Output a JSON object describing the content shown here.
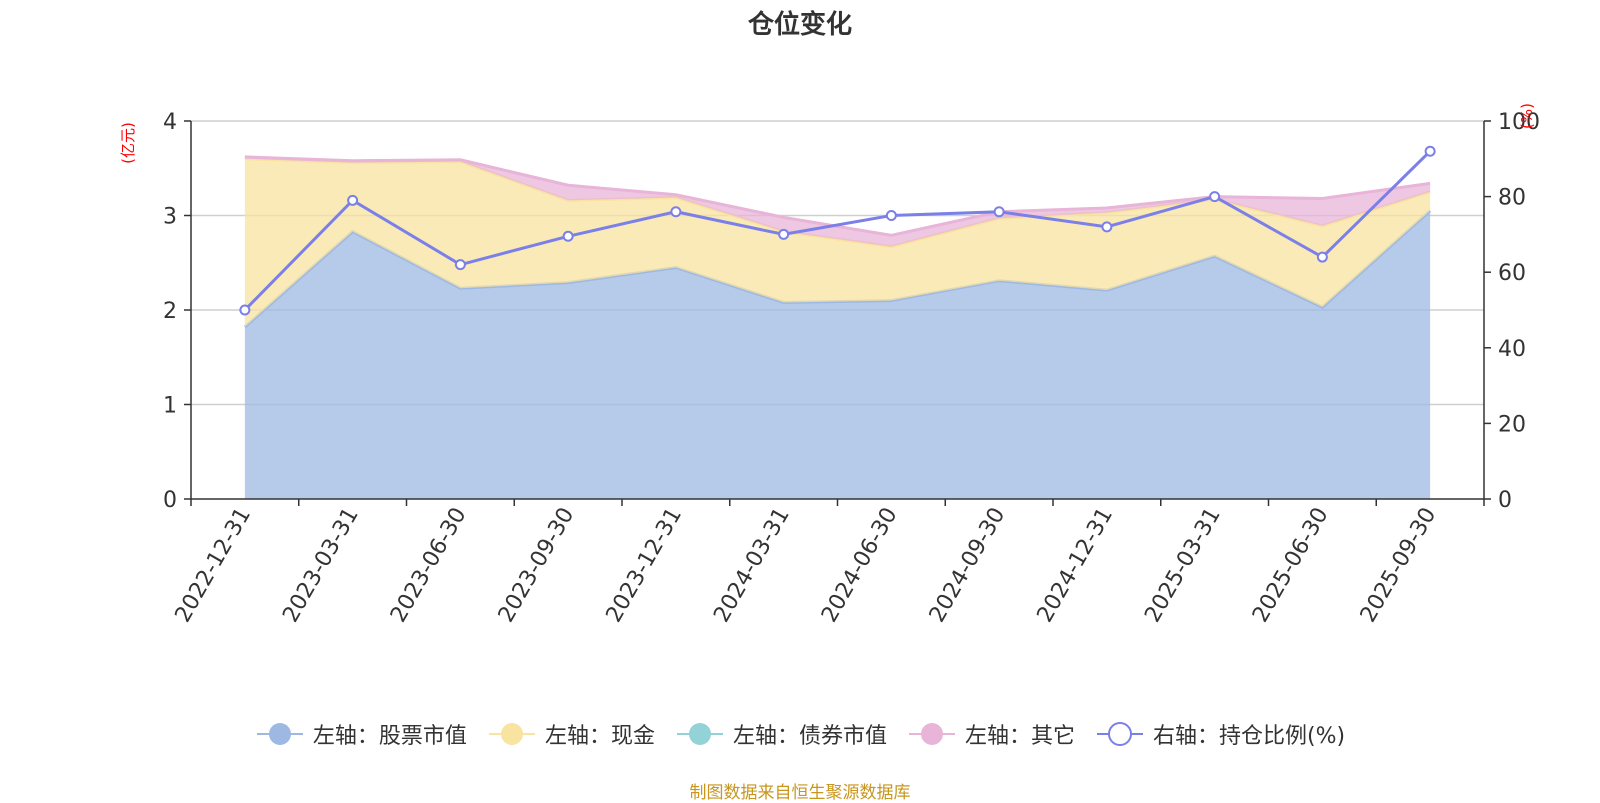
{
  "chart_data": {
    "type": "area",
    "title": "仓位变化",
    "source_note": "制图数据来自恒生聚源数据库",
    "left_axis": {
      "label": "(亿元)",
      "range": [
        0,
        4
      ],
      "ticks": [
        "0",
        "1",
        "2",
        "3",
        "4"
      ]
    },
    "right_axis": {
      "label": "(%)",
      "range": [
        0,
        100
      ],
      "ticks": [
        "0",
        "20",
        "40",
        "60",
        "80",
        "100"
      ]
    },
    "categories": [
      "2022-12-31",
      "2023-03-31",
      "2023-06-30",
      "2023-09-30",
      "2023-12-31",
      "2024-03-31",
      "2024-06-30",
      "2024-09-30",
      "2024-12-31",
      "2025-03-31",
      "2025-06-30",
      "2025-09-30"
    ],
    "grid": true,
    "legend_position": "bottom",
    "series": [
      {
        "name": "左轴：股票市值",
        "axis": "left",
        "kind": "stacked-area",
        "color": "#9db9e3",
        "values": [
          1.82,
          2.83,
          2.23,
          2.29,
          2.45,
          2.08,
          2.1,
          2.31,
          2.21,
          2.57,
          2.03,
          3.05
        ]
      },
      {
        "name": "左轴：现金",
        "axis": "left",
        "kind": "stacked-area",
        "color": "#f8e3a0",
        "values": [
          1.78,
          0.73,
          1.34,
          0.87,
          0.74,
          0.75,
          0.57,
          0.66,
          0.82,
          0.6,
          0.86,
          0.2
        ]
      },
      {
        "name": "左轴：债券市值",
        "axis": "left",
        "kind": "stacked-area",
        "color": "#93d2d6",
        "values": [
          0,
          0,
          0,
          0,
          0,
          0,
          0,
          0,
          0,
          0,
          0,
          0
        ]
      },
      {
        "name": "左轴：其它",
        "axis": "left",
        "kind": "stacked-area",
        "color": "#e8b4d8",
        "values": [
          0.02,
          0.02,
          0.02,
          0.16,
          0.03,
          0.15,
          0.12,
          0.07,
          0.05,
          0.03,
          0.29,
          0.09
        ]
      },
      {
        "name": "右轴：持仓比例(%)",
        "axis": "right",
        "kind": "line",
        "color": "#7b7fe8",
        "values": [
          50,
          79,
          62,
          69.5,
          76,
          70,
          75,
          76,
          72,
          80,
          64,
          92
        ]
      }
    ]
  }
}
